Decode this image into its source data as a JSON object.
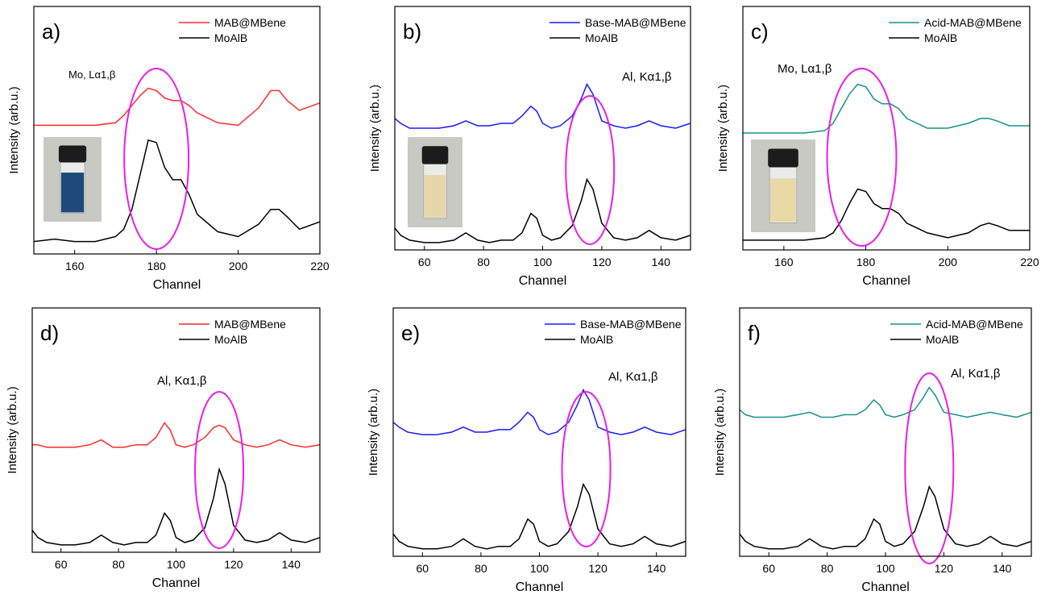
{
  "chart_data": [
    {
      "type": "line",
      "label": "a)",
      "annotation": "Mo, Lα1,β",
      "x_label": "Channel",
      "y_label": "Intensity (arb.u.)",
      "legend": "upper right",
      "x": [
        150,
        155,
        160,
        165,
        170,
        172,
        174,
        176,
        178,
        180,
        182,
        184,
        186,
        188,
        190,
        195,
        200,
        205,
        208,
        210,
        212,
        215,
        220
      ],
      "series": [
        {
          "name": "MAB@MBene",
          "color": "#ff2a2a",
          "values": [
            52,
            52,
            52,
            52,
            53,
            56,
            60,
            64,
            67,
            66,
            63,
            62,
            62,
            60,
            57,
            53,
            52,
            59,
            66,
            66,
            62,
            58,
            61
          ]
        },
        {
          "name": "MoAlB",
          "color": "#000000",
          "values": [
            5,
            6,
            5,
            5,
            7,
            10,
            18,
            32,
            46,
            45,
            35,
            30,
            30,
            24,
            16,
            9,
            7,
            12,
            18,
            18,
            15,
            10,
            13
          ]
        }
      ],
      "xlim": [
        150,
        220
      ],
      "xticks": [
        160,
        180,
        200,
        220
      ],
      "ylim": [
        0,
        100
      ]
    },
    {
      "type": "line",
      "label": "b)",
      "annotation": "Al, Kα1,β",
      "x_label": "Channel",
      "y_label": "Intensity (arb.u.)",
      "legend": "upper right",
      "x": [
        50,
        52,
        55,
        60,
        65,
        70,
        74,
        78,
        82,
        86,
        90,
        93,
        96,
        98,
        100,
        103,
        106,
        110,
        113,
        115,
        117,
        120,
        124,
        128,
        132,
        136,
        140,
        145,
        150
      ],
      "series": [
        {
          "name": "Base-MAB@MBene",
          "color": "#1a1aff",
          "values": [
            54,
            52,
            50,
            50,
            50,
            51,
            53,
            51,
            51,
            52,
            52,
            55,
            59,
            57,
            52,
            50,
            51,
            55,
            62,
            68,
            64,
            53,
            51,
            50,
            51,
            53,
            51,
            50,
            52
          ]
        },
        {
          "name": "MoAlB",
          "color": "#000000",
          "values": [
            9,
            6,
            4,
            3,
            3,
            4,
            7,
            4,
            3,
            4,
            4,
            7,
            15,
            13,
            6,
            4,
            5,
            10,
            20,
            29,
            25,
            11,
            5,
            4,
            5,
            8,
            5,
            4,
            6
          ]
        }
      ],
      "xlim": [
        50,
        150
      ],
      "xticks": [
        60,
        80,
        100,
        120,
        140
      ],
      "ylim": [
        0,
        100
      ]
    },
    {
      "type": "line",
      "label": "c)",
      "annotation": "Mo, Lα1,β",
      "x_label": "Channel",
      "y_label": "Intensity (arb.u.)",
      "legend": "upper right",
      "x": [
        150,
        155,
        160,
        165,
        170,
        172,
        174,
        176,
        178,
        180,
        182,
        184,
        186,
        188,
        190,
        195,
        200,
        205,
        208,
        210,
        212,
        215,
        220
      ],
      "series": [
        {
          "name": "Acid-MAB@MBene",
          "color": "#17918a",
          "values": [
            48,
            48,
            48,
            48,
            49,
            52,
            58,
            64,
            68,
            67,
            62,
            60,
            60,
            58,
            54,
            50,
            50,
            52,
            54,
            54,
            53,
            51,
            51
          ]
        },
        {
          "name": "MoAlB",
          "color": "#000000",
          "values": [
            4,
            4,
            4,
            4,
            5,
            7,
            12,
            19,
            25,
            24,
            19,
            17,
            17,
            15,
            11,
            7,
            5,
            7,
            10,
            11,
            10,
            8,
            8
          ]
        }
      ],
      "xlim": [
        150,
        220
      ],
      "xticks": [
        160,
        180,
        200,
        220
      ],
      "ylim": [
        0,
        100
      ]
    },
    {
      "type": "line",
      "label": "d)",
      "annotation": "Al, Kα1,β",
      "x_label": "Channel",
      "y_label": "Intensity (arb.u.)",
      "legend": "upper right",
      "x": [
        50,
        52,
        55,
        60,
        65,
        70,
        74,
        78,
        82,
        86,
        90,
        93,
        96,
        98,
        100,
        103,
        106,
        110,
        113,
        115,
        117,
        120,
        124,
        128,
        132,
        136,
        140,
        145,
        150
      ],
      "series": [
        {
          "name": "MAB@MBene",
          "color": "#ff2a2a",
          "values": [
            44,
            44,
            43,
            43,
            43,
            44,
            46,
            43,
            43,
            44,
            44,
            47,
            53,
            50,
            44,
            43,
            44,
            47,
            51,
            52,
            51,
            46,
            44,
            43,
            44,
            46,
            44,
            43,
            44
          ]
        },
        {
          "name": "MoAlB",
          "color": "#000000",
          "values": [
            9,
            6,
            4,
            3,
            3,
            4,
            7,
            4,
            3,
            4,
            4,
            7,
            16,
            13,
            6,
            4,
            5,
            10,
            22,
            34,
            28,
            11,
            5,
            4,
            5,
            8,
            5,
            4,
            6
          ]
        }
      ],
      "xlim": [
        50,
        150
      ],
      "xticks": [
        60,
        80,
        100,
        120,
        140
      ],
      "ylim": [
        0,
        100
      ]
    },
    {
      "type": "line",
      "label": "e)",
      "annotation": "Al, Kα1,β",
      "x_label": "Channel",
      "y_label": "Intensity (arb.u.)",
      "legend": "upper right",
      "x": [
        50,
        52,
        55,
        60,
        65,
        70,
        74,
        78,
        82,
        86,
        90,
        93,
        96,
        98,
        100,
        103,
        106,
        110,
        113,
        115,
        117,
        120,
        124,
        128,
        132,
        136,
        140,
        145,
        150
      ],
      "series": [
        {
          "name": "Base-MAB@MBene",
          "color": "#1a1aff",
          "values": [
            54,
            52,
            50,
            49,
            49,
            50,
            52,
            50,
            50,
            51,
            51,
            54,
            58,
            56,
            51,
            49,
            50,
            54,
            61,
            67,
            63,
            52,
            50,
            49,
            50,
            52,
            50,
            49,
            51
          ]
        },
        {
          "name": "MoAlB",
          "color": "#000000",
          "values": [
            9,
            6,
            4,
            3,
            3,
            4,
            7,
            4,
            3,
            4,
            4,
            7,
            15,
            13,
            6,
            4,
            5,
            10,
            20,
            29,
            25,
            11,
            5,
            4,
            5,
            8,
            5,
            4,
            6
          ]
        }
      ],
      "xlim": [
        50,
        150
      ],
      "xticks": [
        60,
        80,
        100,
        120,
        140
      ],
      "ylim": [
        0,
        100
      ]
    },
    {
      "type": "line",
      "label": "f)",
      "annotation": "Al, Kα1,β",
      "x_label": "Channel",
      "y_label": "Intensity (arb.u.)",
      "legend": "upper right",
      "x": [
        50,
        52,
        55,
        60,
        65,
        70,
        74,
        78,
        82,
        86,
        90,
        93,
        96,
        98,
        100,
        103,
        106,
        110,
        113,
        115,
        117,
        120,
        124,
        128,
        132,
        136,
        140,
        145,
        150
      ],
      "series": [
        {
          "name": "Acid-MAB@MBene",
          "color": "#17918a",
          "values": [
            59,
            57,
            56,
            56,
            56,
            57,
            58,
            56,
            56,
            57,
            57,
            59,
            63,
            61,
            57,
            56,
            57,
            59,
            64,
            68,
            65,
            58,
            57,
            56,
            57,
            58,
            57,
            56,
            58
          ]
        },
        {
          "name": "MoAlB",
          "color": "#000000",
          "values": [
            9,
            6,
            4,
            3,
            3,
            4,
            7,
            4,
            3,
            4,
            4,
            7,
            15,
            13,
            6,
            4,
            5,
            10,
            20,
            28,
            24,
            11,
            5,
            4,
            5,
            8,
            5,
            4,
            6
          ]
        }
      ],
      "xlim": [
        50,
        150
      ],
      "xticks": [
        60,
        80,
        100,
        120,
        140
      ],
      "ylim": [
        0,
        100
      ]
    }
  ]
}
